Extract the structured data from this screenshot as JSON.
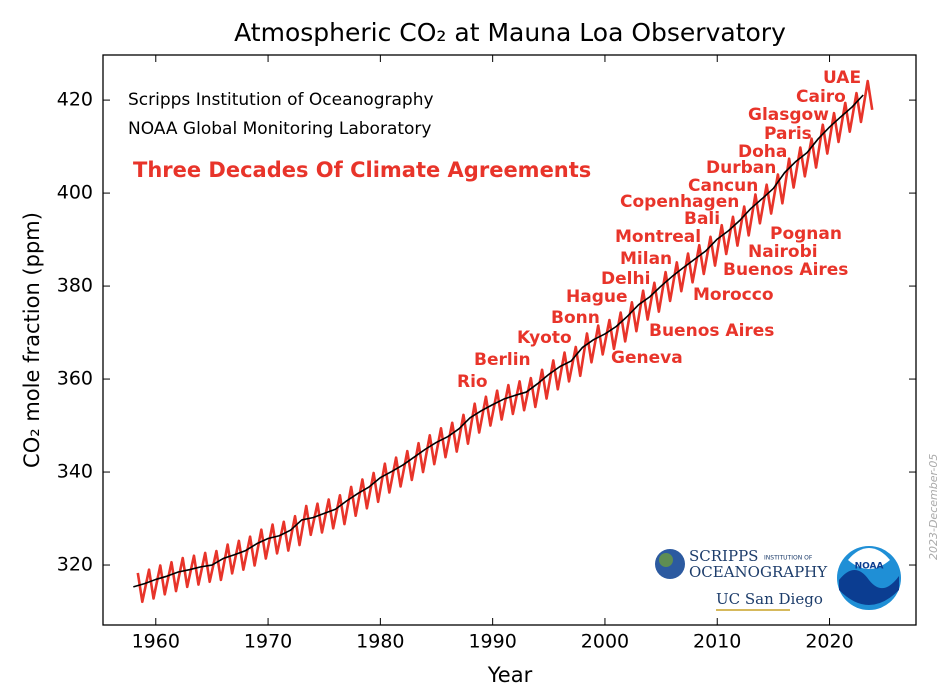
{
  "chart_data": {
    "type": "line",
    "title": "Atmospheric CO₂ at Mauna Loa Observatory",
    "xlabel": "Year",
    "ylabel": "CO₂ mole fraction (ppm)",
    "xlim": [
      1955.3,
      2027.7
    ],
    "ylim": [
      307.1,
      429.7
    ],
    "xticks": [
      1960,
      1970,
      1980,
      1990,
      2000,
      2010,
      2020
    ],
    "yticks": [
      320,
      340,
      360,
      380,
      400,
      420
    ],
    "series": [
      {
        "color": "#e8342a",
        "x": [
          1958.4,
          1958.8,
          1959.4,
          1959.8,
          1960.4,
          1960.8,
          1961.4,
          1961.8,
          1962.4,
          1962.8,
          1963.4,
          1963.8,
          1964.4,
          1964.8,
          1965.4,
          1965.8,
          1966.4,
          1966.8,
          1967.4,
          1967.8,
          1968.4,
          1968.8,
          1969.4,
          1969.8,
          1970.4,
          1970.8,
          1971.4,
          1971.8,
          1972.4,
          1972.8,
          1973.4,
          1973.8,
          1974.4,
          1974.8,
          1975.4,
          1975.8,
          1976.4,
          1976.8,
          1977.4,
          1977.8,
          1978.4,
          1978.8,
          1979.4,
          1979.8,
          1980.4,
          1980.8,
          1981.4,
          1981.8,
          1982.4,
          1982.8,
          1983.4,
          1983.8,
          1984.4,
          1984.8,
          1985.4,
          1985.8,
          1986.4,
          1986.8,
          1987.4,
          1987.8,
          1988.4,
          1988.8,
          1989.4,
          1989.8,
          1990.4,
          1990.8,
          1991.4,
          1991.8,
          1992.4,
          1992.8,
          1993.4,
          1993.8,
          1994.4,
          1994.8,
          1995.4,
          1995.8,
          1996.4,
          1996.8,
          1997.4,
          1997.8,
          1998.4,
          1998.8,
          1999.4,
          1999.8,
          2000.4,
          2000.8,
          2001.4,
          2001.8,
          2002.4,
          2002.8,
          2003.4,
          2003.8,
          2004.4,
          2004.8,
          2005.4,
          2005.8,
          2006.4,
          2006.8,
          2007.4,
          2007.8,
          2008.4,
          2008.8,
          2009.4,
          2009.8,
          2010.4,
          2010.8,
          2011.4,
          2011.8,
          2012.4,
          2012.8,
          2013.4,
          2013.8,
          2014.4,
          2014.8,
          2015.4,
          2015.8,
          2016.4,
          2016.8,
          2017.4,
          2017.8,
          2018.4,
          2018.8,
          2019.4,
          2019.8,
          2020.4,
          2020.8,
          2021.4,
          2021.8,
          2022.4,
          2022.8,
          2023.4,
          2023.8
        ],
        "values": [
          318.3,
          312.1,
          319.0,
          312.8,
          319.9,
          313.7,
          320.6,
          314.4,
          321.5,
          315.3,
          322.0,
          315.8,
          322.6,
          316.4,
          323.0,
          316.8,
          324.4,
          318.2,
          325.2,
          319.0,
          326.1,
          319.9,
          327.6,
          321.4,
          328.7,
          322.5,
          329.3,
          323.1,
          330.5,
          324.3,
          332.7,
          326.5,
          333.2,
          327.0,
          334.1,
          327.9,
          335.0,
          328.8,
          336.8,
          330.6,
          338.4,
          332.2,
          339.8,
          333.6,
          341.8,
          335.6,
          343.1,
          336.9,
          344.5,
          338.3,
          346.2,
          340.0,
          347.9,
          341.7,
          349.4,
          343.2,
          350.6,
          344.4,
          352.3,
          346.1,
          354.7,
          348.5,
          356.2,
          350.0,
          357.5,
          351.3,
          358.7,
          352.5,
          359.5,
          353.3,
          360.2,
          354.0,
          362.0,
          355.8,
          364.0,
          357.8,
          365.7,
          359.5,
          366.9,
          360.7,
          369.8,
          363.6,
          371.5,
          365.3,
          372.7,
          366.5,
          374.3,
          368.1,
          376.5,
          370.3,
          379.0,
          372.8,
          380.7,
          374.5,
          383.0,
          376.8,
          385.1,
          378.9,
          387.0,
          380.8,
          388.8,
          382.6,
          390.6,
          384.4,
          393.1,
          386.9,
          394.9,
          388.7,
          397.1,
          390.9,
          399.7,
          393.5,
          401.8,
          395.6,
          404.0,
          397.8,
          407.4,
          401.2,
          409.8,
          403.6,
          411.7,
          405.5,
          414.7,
          408.5,
          417.2,
          411.0,
          419.4,
          413.2,
          421.5,
          415.3,
          424.1,
          417.9
        ]
      },
      {
        "color": "#000000",
        "x": [
          1958,
          1959,
          1960,
          1961,
          1962,
          1963,
          1964,
          1965,
          1966,
          1967,
          1968,
          1969,
          1970,
          1971,
          1972,
          1973,
          1974,
          1975,
          1976,
          1977,
          1978,
          1979,
          1980,
          1981,
          1982,
          1983,
          1984,
          1985,
          1986,
          1987,
          1988,
          1989,
          1990,
          1991,
          1992,
          1993,
          1994,
          1995,
          1996,
          1997,
          1998,
          1999,
          2000,
          2001,
          2002,
          2003,
          2004,
          2005,
          2006,
          2007,
          2008,
          2009,
          2010,
          2011,
          2012,
          2013,
          2014,
          2015,
          2016,
          2017,
          2018,
          2019,
          2020,
          2021,
          2022,
          2023
        ],
        "values": [
          315.3,
          316.0,
          316.9,
          317.6,
          318.5,
          319.0,
          319.6,
          320.0,
          321.4,
          322.2,
          323.1,
          324.6,
          325.7,
          326.3,
          327.5,
          329.7,
          330.2,
          331.1,
          332.0,
          333.8,
          335.4,
          336.8,
          338.8,
          340.1,
          341.5,
          343.2,
          344.9,
          346.4,
          347.6,
          349.3,
          351.7,
          353.2,
          354.5,
          355.7,
          356.5,
          357.2,
          359.0,
          361.0,
          362.7,
          363.9,
          366.8,
          368.5,
          369.7,
          371.3,
          373.5,
          376.0,
          377.7,
          380.0,
          382.1,
          384.0,
          385.8,
          387.6,
          390.1,
          391.9,
          394.1,
          396.7,
          398.8,
          401.0,
          404.4,
          406.8,
          408.7,
          411.7,
          414.2,
          416.4,
          418.5,
          421.1
        ]
      }
    ],
    "source_lines": [
      "Scripps Institution of Oceanography",
      "NOAA Global Monitoring Laboratory"
    ],
    "subtitle": "Three Decades Of Climate Agreements",
    "agreements": [
      "UAE",
      "Cairo",
      "Glasgow",
      "Paris",
      "Doha",
      "Durban",
      "Cancun",
      "Copenhagen",
      "Bali",
      "Pognan",
      "Montreal",
      "Nairobi",
      "Milan",
      "Buenos Aires",
      "Delhi",
      "Morocco",
      "Hague",
      "Bonn",
      "Buenos Aires",
      "Kyoto",
      "Geneva",
      "Berlin",
      "Rio"
    ],
    "date": "2023-December-05",
    "logos": {
      "scripps": "SCRIPPS",
      "scripps_small": "INSTITUTION OF",
      "scripps_name": "OCEANOGRAPHY",
      "ucsd": "UC San Diego",
      "noaa": "NOAA"
    }
  }
}
